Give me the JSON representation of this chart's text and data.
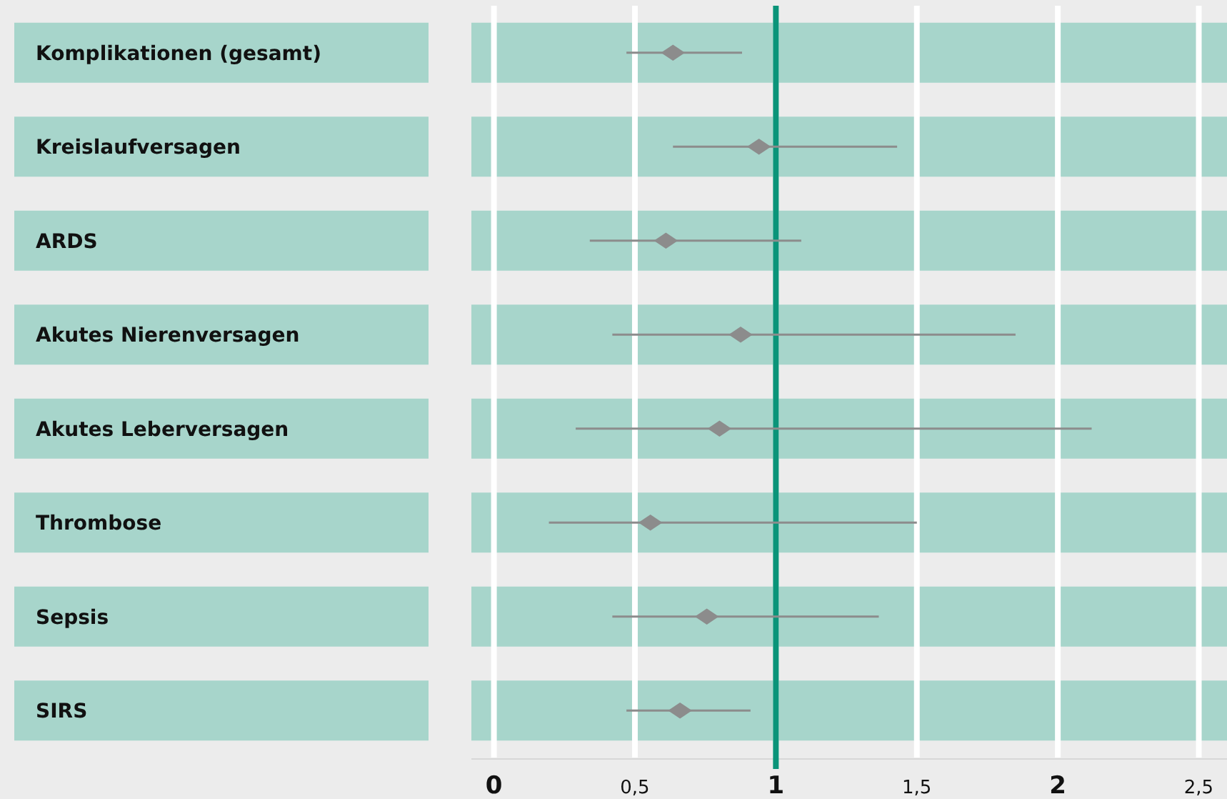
{
  "chart_data": {
    "type": "scatter",
    "orientation": "horizontal",
    "categories": [
      "Komplikationen (gesamt)",
      "Kreislaufversagen",
      "ARDS",
      "Akutes Nierenversagen",
      "Akutes Leberversagen",
      "Thrombose",
      "Sepsis",
      "SIRS"
    ],
    "values": [
      0.635,
      0.94,
      0.61,
      0.875,
      0.8,
      0.555,
      0.755,
      0.66
    ],
    "errors": [
      [
        0.47,
        0.88
      ],
      [
        0.635,
        1.43
      ],
      [
        0.34,
        1.09
      ],
      [
        0.42,
        1.85
      ],
      [
        0.29,
        2.12
      ],
      [
        0.195,
        1.5
      ],
      [
        0.42,
        1.365
      ],
      [
        0.47,
        0.91
      ]
    ],
    "color": "#8c8c8c",
    "marker": "diamond",
    "xlim": [
      -0.08,
      2.6
    ],
    "xticks": [
      0,
      {
        "value": 0.5,
        "label": "0,5"
      },
      1,
      {
        "value": 1.5,
        "label": "1,5"
      },
      2,
      {
        "value": 2.5,
        "label": "2,5"
      }
    ],
    "grid": "x",
    "ref_lines": [
      {
        "axis": "x",
        "value": 1,
        "color": "#0a9479"
      }
    ]
  }
}
